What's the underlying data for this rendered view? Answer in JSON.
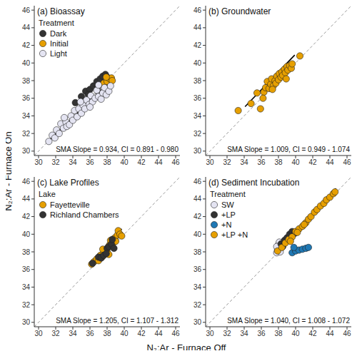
{
  "x_label": "N₂:Ar - Furnace Off",
  "y_label": "N₂:Ar - Furnace On",
  "chart_data": [
    {
      "type": "scatter",
      "title": "(a) Bioassay",
      "legend": "top-left",
      "legend_title": "Treatment",
      "xlim": [
        29.5,
        46.5
      ],
      "ylim": [
        29.5,
        46.5
      ],
      "xticks": [
        30,
        32,
        34,
        36,
        38,
        40,
        42,
        44,
        46
      ],
      "yticks": [
        30,
        32,
        34,
        36,
        38,
        40,
        42,
        44,
        46
      ],
      "annotations": [
        "SMA Slope = 0.934, CI = 0.891 - 0.980"
      ],
      "series": [
        {
          "type": "line",
          "line_style": "dashed",
          "color": "#9a9a9a",
          "x": [
            29.5,
            46.5
          ],
          "y": [
            29.5,
            46.5
          ]
        },
        {
          "name": "Dark",
          "color": "#333333",
          "x": [
            34.3,
            35.0,
            35.5,
            36.0,
            36.4,
            36.8,
            37.2,
            37.5,
            37.8,
            38.0,
            38.2,
            37.6,
            36.9,
            35.8,
            38.3,
            37.0,
            36.2,
            35.3
          ],
          "y": [
            35.5,
            36.2,
            36.8,
            37.0,
            37.4,
            37.9,
            38.2,
            38.5,
            38.7,
            38.4,
            38.0,
            37.6,
            37.3,
            36.4,
            37.6,
            36.7,
            36.0,
            35.3
          ]
        },
        {
          "name": "Initial",
          "color": "#E69F00",
          "x": [
            37.6,
            38.0,
            38.3,
            38.5,
            37.9,
            38.6
          ],
          "y": [
            37.7,
            37.9,
            38.2,
            38.3,
            38.4,
            38.0
          ]
        },
        {
          "name": "Light",
          "color": "#E4E4F2",
          "x": [
            31.2,
            31.6,
            31.9,
            32.1,
            32.4,
            32.6,
            32.9,
            33.2,
            33.3,
            33.6,
            33.8,
            34.0,
            34.2,
            34.5,
            34.7,
            35.0,
            35.2,
            35.4,
            35.6,
            35.9,
            36.1,
            36.3,
            36.6,
            36.8,
            37.0,
            37.3,
            37.5,
            37.7,
            37.9,
            38.2,
            38.4,
            37.0,
            36.0,
            33.0,
            34.9
          ],
          "y": [
            31.1,
            31.8,
            31.5,
            32.4,
            32.0,
            33.1,
            32.6,
            33.3,
            32.8,
            33.0,
            34.0,
            33.5,
            34.6,
            33.9,
            34.8,
            34.3,
            35.2,
            34.8,
            35.8,
            35.3,
            36.3,
            35.6,
            36.0,
            36.9,
            36.2,
            35.9,
            36.6,
            37.2,
            36.4,
            36.8,
            37.4,
            37.5,
            35.0,
            33.8,
            35.6
          ]
        },
        {
          "type": "line",
          "color": "#000000",
          "x": [
            31.2,
            38.6
          ],
          "y": [
            31.19,
            38.1
          ]
        }
      ]
    },
    {
      "type": "scatter",
      "title": "(b) Groundwater",
      "xlim": [
        29.5,
        46.5
      ],
      "ylim": [
        29.5,
        46.5
      ],
      "xticks": [
        30,
        32,
        34,
        36,
        38,
        40,
        42,
        44,
        46
      ],
      "yticks": [
        30,
        32,
        34,
        36,
        38,
        40,
        42,
        44,
        46
      ],
      "annotations": [
        "SMA Slope = 1.009, CI = 0.949 - 1.074"
      ],
      "series": [
        {
          "type": "line",
          "line_style": "dashed",
          "color": "#9a9a9a",
          "x": [
            29.5,
            46.5
          ],
          "y": [
            29.5,
            46.5
          ]
        },
        {
          "color": "#E69F00",
          "x": [
            33.3,
            34.8,
            35.5,
            35.9,
            36.3,
            36.5,
            36.7,
            36.9,
            37.1,
            37.2,
            37.4,
            37.6,
            37.7,
            37.8,
            38.0,
            38.1,
            38.3,
            38.4,
            38.5,
            38.7,
            38.8,
            39.0,
            39.1,
            39.3,
            39.5,
            39.6,
            40.5,
            38.9,
            37.3,
            36.2
          ],
          "y": [
            34.6,
            35.4,
            36.6,
            34.8,
            36.7,
            37.2,
            37.9,
            37.1,
            37.6,
            38.2,
            37.4,
            38.0,
            37.7,
            38.5,
            38.1,
            38.8,
            38.4,
            39.0,
            38.6,
            39.3,
            38.9,
            39.6,
            39.2,
            39.7,
            39.4,
            39.9,
            40.8,
            38.2,
            37.0,
            36.0
          ]
        },
        {
          "type": "line",
          "color": "#000000",
          "x": [
            34.1,
            39.9
          ],
          "y": [
            35.05,
            40.9
          ]
        }
      ]
    },
    {
      "type": "scatter",
      "title": "(c) Lake Profiles",
      "legend": "top-left",
      "legend_title": "Lake",
      "xlim": [
        29.5,
        46.5
      ],
      "ylim": [
        29.5,
        46.5
      ],
      "xticks": [
        30,
        32,
        34,
        36,
        38,
        40,
        42,
        44,
        46
      ],
      "yticks": [
        30,
        32,
        34,
        36,
        38,
        40,
        42,
        44,
        46
      ],
      "annotations": [
        "SMA Slope = 1.205, CI = 1.107 - 1.312"
      ],
      "series": [
        {
          "type": "line",
          "line_style": "dashed",
          "color": "#9a9a9a",
          "x": [
            29.5,
            46.5
          ],
          "y": [
            29.5,
            46.5
          ]
        },
        {
          "name": "Fayetteville",
          "color": "#E69F00",
          "x": [
            36.2,
            36.5,
            36.8,
            37.0,
            37.2,
            37.4,
            37.6,
            37.8,
            38.0,
            38.1,
            38.3,
            38.4,
            38.6,
            38.7,
            38.9,
            39.0,
            39.2,
            39.3,
            39.5,
            39.7,
            38.2,
            37.5
          ],
          "y": [
            36.6,
            36.9,
            37.2,
            37.0,
            37.6,
            37.4,
            37.9,
            38.2,
            38.0,
            38.5,
            38.8,
            39.3,
            38.6,
            39.0,
            39.6,
            39.2,
            39.9,
            40.4,
            40.0,
            39.8,
            37.7,
            38.3
          ]
        },
        {
          "name": "Richland Chambers",
          "color": "#333333",
          "x": [
            36.3,
            37.0,
            37.3,
            37.6,
            38.0,
            38.2,
            38.5,
            38.8,
            37.9,
            38.6
          ],
          "y": [
            36.7,
            37.4,
            37.3,
            37.6,
            38.4,
            38.6,
            38.9,
            38.4,
            37.8,
            39.4
          ]
        },
        {
          "type": "line",
          "color": "#000000",
          "x": [
            36.2,
            39.7
          ],
          "y": [
            36.4,
            40.62
          ]
        }
      ]
    },
    {
      "type": "scatter",
      "title": "(d) Sediment Incubation",
      "legend": "top-left",
      "legend_title": "Treatment",
      "xlim": [
        29.5,
        46.5
      ],
      "ylim": [
        29.5,
        46.5
      ],
      "xticks": [
        30,
        32,
        34,
        36,
        38,
        40,
        42,
        44,
        46
      ],
      "yticks": [
        30,
        32,
        34,
        36,
        38,
        40,
        42,
        44,
        46
      ],
      "annotations": [
        "SMA Slope = 1.040, CI = 1.008 - 1.072"
      ],
      "series": [
        {
          "type": "line",
          "line_style": "dashed",
          "color": "#9a9a9a",
          "x": [
            29.5,
            46.5
          ],
          "y": [
            29.5,
            46.5
          ]
        },
        {
          "name": "SW",
          "color": "#E4E4F2",
          "x": [
            37.8,
            37.9,
            38.0,
            38.1,
            37.8,
            38.2
          ],
          "y": [
            37.9,
            38.3,
            38.8,
            39.1,
            38.6,
            38.0
          ]
        },
        {
          "name": "+LP",
          "color": "#333333",
          "x": [
            38.3,
            38.7,
            39.0,
            39.3,
            39.6,
            39.9,
            38.5
          ],
          "y": [
            38.9,
            39.3,
            39.6,
            40.0,
            40.3,
            40.1,
            38.6
          ]
        },
        {
          "name": "+N",
          "color": "#1F78B4",
          "x": [
            39.6,
            40.0,
            40.4,
            40.8,
            41.2,
            41.5,
            39.8
          ],
          "y": [
            37.9,
            38.1,
            38.2,
            38.3,
            38.4,
            38.5,
            38.5
          ]
        },
        {
          "name": "+LP +N",
          "color": "#E69F00",
          "x": [
            37.9,
            38.4,
            38.8,
            39.2,
            39.6,
            40.0,
            40.4,
            40.8,
            41.2,
            41.5,
            41.8,
            42.2,
            42.5,
            42.9,
            43.3,
            43.6,
            44.0,
            44.4,
            44.6,
            41.0,
            40.2,
            39.4
          ],
          "y": [
            38.1,
            38.5,
            39.0,
            39.4,
            39.7,
            40.3,
            40.6,
            40.9,
            41.3,
            41.7,
            42.0,
            42.5,
            42.8,
            43.2,
            43.5,
            43.9,
            44.2,
            44.6,
            44.8,
            41.1,
            40.2,
            39.2
          ]
        },
        {
          "type": "line",
          "color": "#000000",
          "x": [
            37.8,
            44.7
          ],
          "y": [
            38.0,
            45.18
          ]
        }
      ]
    }
  ]
}
